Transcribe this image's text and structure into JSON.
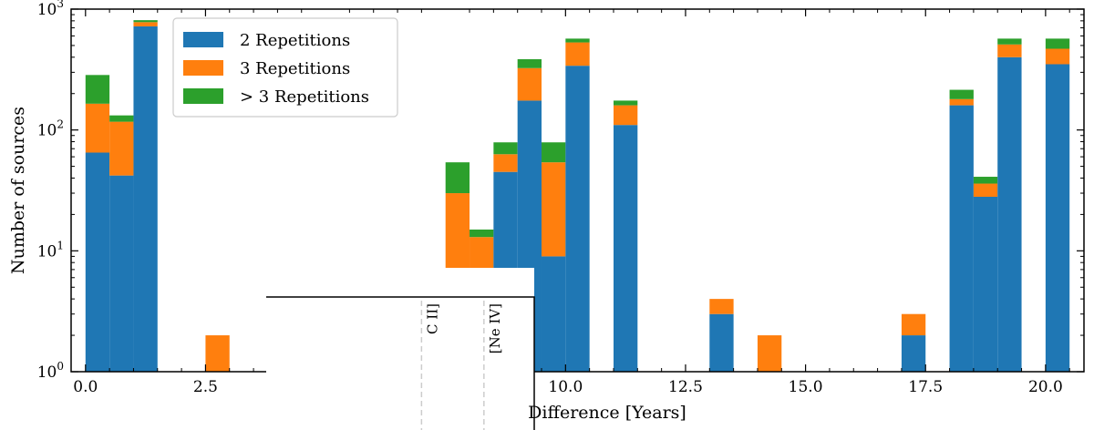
{
  "chart_data": {
    "type": "bar",
    "stacked": true,
    "title": "",
    "xlabel": "Difference [Years]",
    "ylabel": "Number of sources",
    "xlim": [
      -0.3,
      20.8
    ],
    "ylim": [
      1,
      1000
    ],
    "yscale": "log",
    "bin_width": 0.5,
    "x": [
      0.25,
      0.75,
      1.25,
      2.75,
      7.75,
      8.25,
      8.75,
      9.25,
      9.75,
      10.25,
      11.25,
      13.25,
      14.25,
      17.25,
      18.25,
      18.75,
      19.25,
      20.25
    ],
    "series": [
      {
        "name": "2 Repetitions",
        "color": "#1f77b4",
        "values": [
          65,
          42,
          720,
          0,
          0,
          0,
          45,
          175,
          9,
          340,
          110,
          3,
          0,
          2,
          160,
          28,
          400,
          350
        ]
      },
      {
        "name": "3 Repetitions",
        "color": "#ff7f0e",
        "values": [
          100,
          75,
          60,
          2,
          30,
          13,
          18,
          150,
          45,
          190,
          50,
          1,
          2,
          1,
          20,
          8,
          110,
          120
        ]
      },
      {
        "name": "> 3 Repetitions",
        "color": "#2ca02c",
        "values": [
          120,
          15,
          30,
          0,
          24,
          2,
          16,
          60,
          25,
          40,
          15,
          0,
          0,
          0,
          35,
          5,
          60,
          100
        ]
      }
    ],
    "x_ticks": [
      0.0,
      2.5,
      10.0,
      12.5,
      15.0,
      17.5,
      20.0
    ],
    "x_tick_labels": [
      "0.0",
      "2.5",
      "10.0",
      "12.5",
      "15.0",
      "17.5",
      "20.0"
    ],
    "y_ticks": [
      1,
      10,
      100,
      1000
    ],
    "legend_position": "top-left",
    "inset_labels": [
      "C II]",
      "[Ne IV]"
    ],
    "inset_label_x": [
      7.0,
      8.3
    ]
  }
}
